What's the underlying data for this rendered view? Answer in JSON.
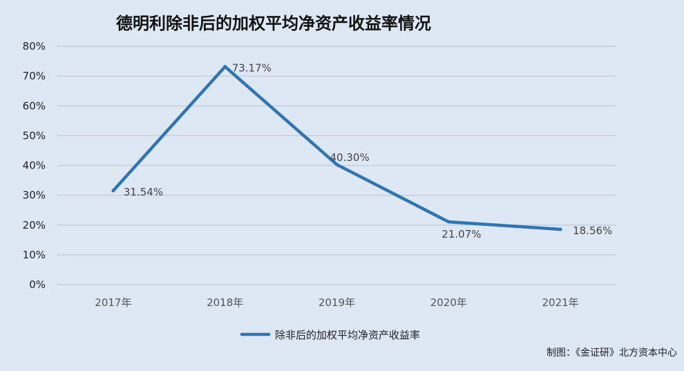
{
  "chart_data": {
    "type": "line",
    "title": "德明利除非后的加权平均净资产收益率情况",
    "categories": [
      "2017年",
      "2018年",
      "2019年",
      "2020年",
      "2021年"
    ],
    "series": [
      {
        "name": "除非后的加权平均净资产收益率",
        "values": [
          31.54,
          73.17,
          40.3,
          21.07,
          18.56
        ],
        "labels": [
          "31.54%",
          "73.17%",
          "40.30%",
          "21.07%",
          "18.56%"
        ],
        "color": "#2e75b6"
      }
    ],
    "yticks": [
      "0%",
      "10%",
      "20%",
      "30%",
      "40%",
      "50%",
      "60%",
      "70%",
      "80%"
    ],
    "ylim": [
      0,
      80
    ],
    "grid": true,
    "legend": "bottom",
    "source": "制图：《金证研》北方资本中心"
  }
}
